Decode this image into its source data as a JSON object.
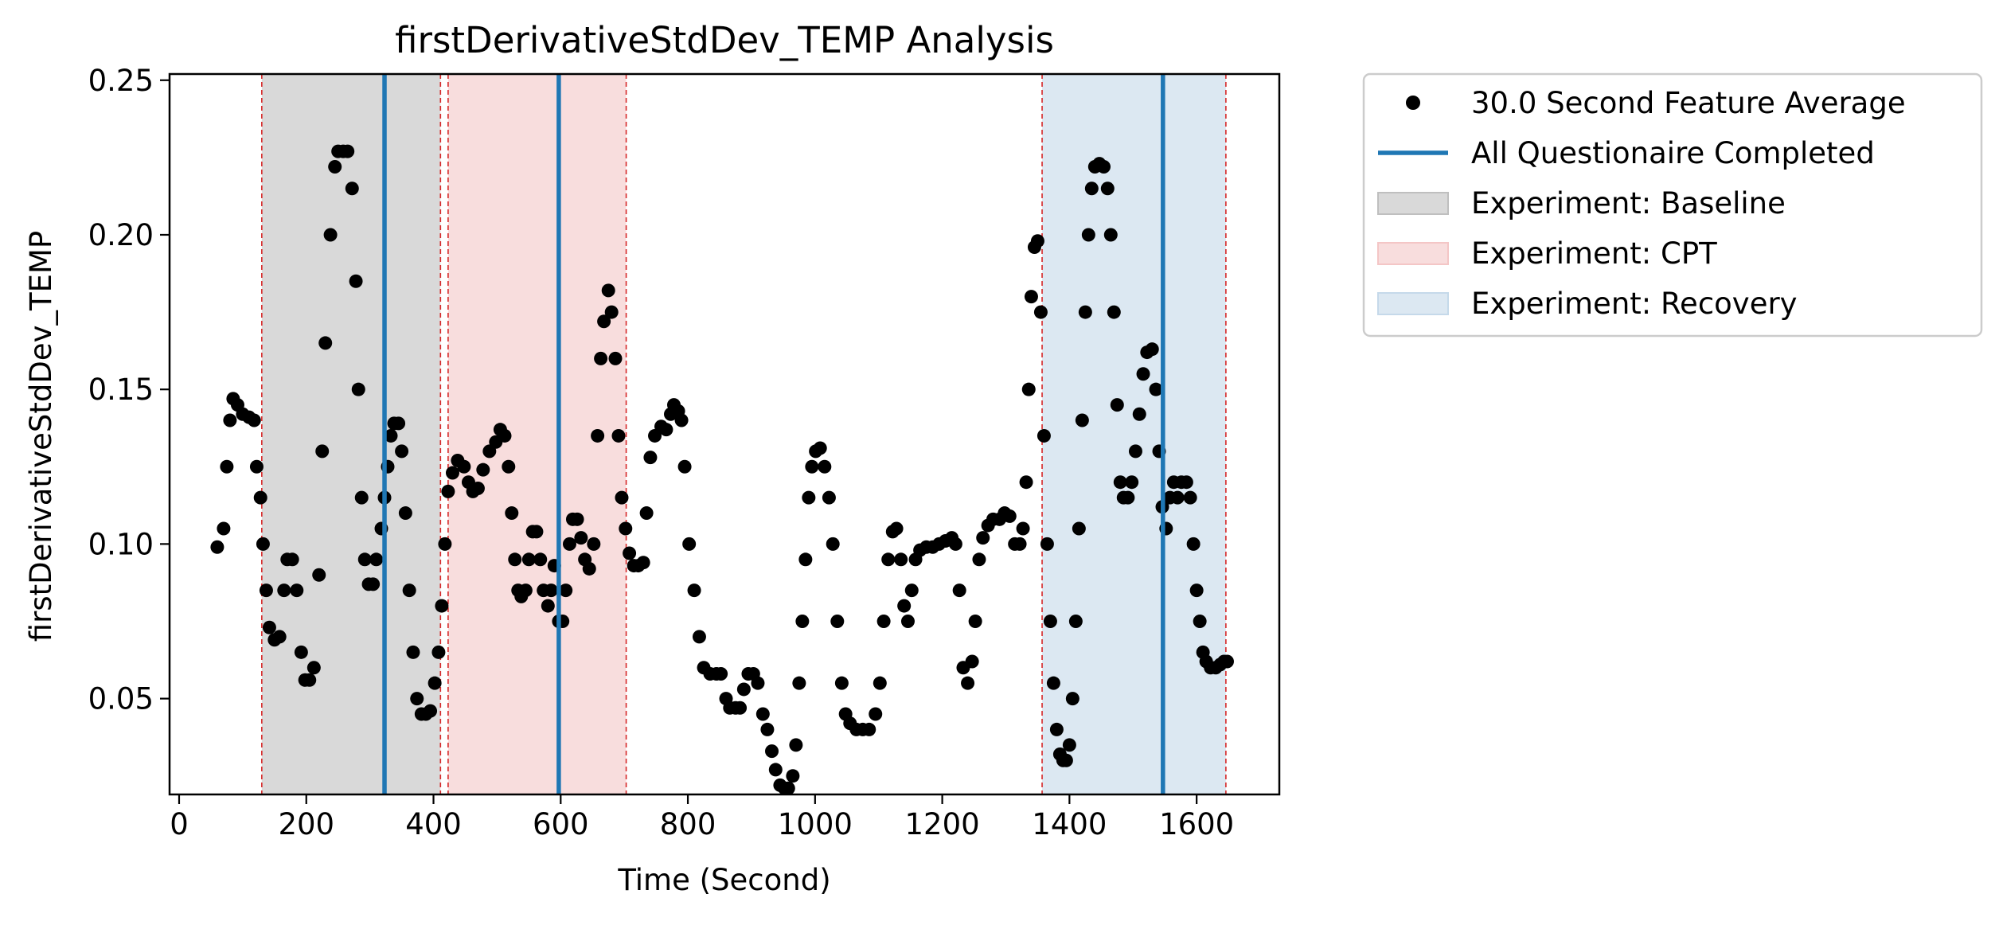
{
  "chart_data": {
    "type": "scatter",
    "title": "firstDerivativeStdDev_TEMP Analysis",
    "xlabel": "Time (Second)",
    "ylabel": "firstDerivativeStdDev_TEMP",
    "xlim": [
      -15,
      1730
    ],
    "ylim": [
      0.019,
      0.252
    ],
    "xticks": [
      0,
      200,
      400,
      600,
      800,
      1000,
      1200,
      1400,
      1600
    ],
    "yticks": [
      0.05,
      0.1,
      0.15,
      0.2,
      0.25
    ],
    "xtick_labels": [
      "0",
      "200",
      "400",
      "600",
      "800",
      "1000",
      "1200",
      "1400",
      "1600"
    ],
    "ytick_labels": [
      "0.05",
      "0.10",
      "0.15",
      "0.20",
      "0.25"
    ],
    "grid": false,
    "legend_position": "outside-upper-right",
    "series": [
      {
        "name": "30.0 Second Feature Average",
        "kind": "scatter",
        "color": "#000000",
        "points": [
          [
            60,
            0.099
          ],
          [
            70,
            0.105
          ],
          [
            75,
            0.125
          ],
          [
            80,
            0.14
          ],
          [
            85,
            0.147
          ],
          [
            92,
            0.145
          ],
          [
            100,
            0.142
          ],
          [
            110,
            0.141
          ],
          [
            118,
            0.14
          ],
          [
            122,
            0.125
          ],
          [
            128,
            0.115
          ],
          [
            132,
            0.1
          ],
          [
            137,
            0.085
          ],
          [
            142,
            0.073
          ],
          [
            150,
            0.069
          ],
          [
            158,
            0.07
          ],
          [
            165,
            0.085
          ],
          [
            170,
            0.095
          ],
          [
            178,
            0.095
          ],
          [
            185,
            0.085
          ],
          [
            192,
            0.065
          ],
          [
            198,
            0.056
          ],
          [
            205,
            0.056
          ],
          [
            212,
            0.06
          ],
          [
            220,
            0.09
          ],
          [
            225,
            0.13
          ],
          [
            230,
            0.165
          ],
          [
            238,
            0.2
          ],
          [
            245,
            0.222
          ],
          [
            250,
            0.227
          ],
          [
            258,
            0.227
          ],
          [
            265,
            0.227
          ],
          [
            272,
            0.215
          ],
          [
            278,
            0.185
          ],
          [
            282,
            0.15
          ],
          [
            287,
            0.115
          ],
          [
            292,
            0.095
          ],
          [
            298,
            0.087
          ],
          [
            305,
            0.087
          ],
          [
            310,
            0.095
          ],
          [
            318,
            0.105
          ],
          [
            323,
            0.115
          ],
          [
            328,
            0.125
          ],
          [
            333,
            0.135
          ],
          [
            338,
            0.139
          ],
          [
            345,
            0.139
          ],
          [
            350,
            0.13
          ],
          [
            356,
            0.11
          ],
          [
            362,
            0.085
          ],
          [
            368,
            0.065
          ],
          [
            374,
            0.05
          ],
          [
            381,
            0.045
          ],
          [
            388,
            0.045
          ],
          [
            395,
            0.046
          ],
          [
            402,
            0.055
          ],
          [
            408,
            0.065
          ],
          [
            413,
            0.08
          ],
          [
            418,
            0.1
          ],
          [
            423,
            0.117
          ],
          [
            430,
            0.123
          ],
          [
            438,
            0.127
          ],
          [
            448,
            0.125
          ],
          [
            455,
            0.12
          ],
          [
            462,
            0.117
          ],
          [
            470,
            0.118
          ],
          [
            478,
            0.124
          ],
          [
            488,
            0.13
          ],
          [
            498,
            0.133
          ],
          [
            505,
            0.137
          ],
          [
            512,
            0.135
          ],
          [
            518,
            0.125
          ],
          [
            523,
            0.11
          ],
          [
            528,
            0.095
          ],
          [
            533,
            0.085
          ],
          [
            538,
            0.083
          ],
          [
            545,
            0.085
          ],
          [
            550,
            0.095
          ],
          [
            556,
            0.104
          ],
          [
            562,
            0.104
          ],
          [
            568,
            0.095
          ],
          [
            573,
            0.085
          ],
          [
            580,
            0.08
          ],
          [
            585,
            0.085
          ],
          [
            590,
            0.093
          ],
          [
            597,
            0.075
          ],
          [
            603,
            0.075
          ],
          [
            608,
            0.085
          ],
          [
            614,
            0.1
          ],
          [
            619,
            0.108
          ],
          [
            626,
            0.108
          ],
          [
            632,
            0.102
          ],
          [
            638,
            0.095
          ],
          [
            645,
            0.092
          ],
          [
            652,
            0.1
          ],
          [
            658,
            0.135
          ],
          [
            663,
            0.16
          ],
          [
            668,
            0.172
          ],
          [
            675,
            0.182
          ],
          [
            680,
            0.175
          ],
          [
            686,
            0.16
          ],
          [
            691,
            0.135
          ],
          [
            696,
            0.115
          ],
          [
            702,
            0.105
          ],
          [
            708,
            0.097
          ],
          [
            715,
            0.093
          ],
          [
            722,
            0.093
          ],
          [
            730,
            0.094
          ],
          [
            735,
            0.11
          ],
          [
            741,
            0.128
          ],
          [
            748,
            0.135
          ],
          [
            758,
            0.138
          ],
          [
            766,
            0.137
          ],
          [
            773,
            0.142
          ],
          [
            778,
            0.145
          ],
          [
            785,
            0.143
          ],
          [
            790,
            0.14
          ],
          [
            795,
            0.125
          ],
          [
            802,
            0.1
          ],
          [
            810,
            0.085
          ],
          [
            818,
            0.07
          ],
          [
            825,
            0.06
          ],
          [
            835,
            0.058
          ],
          [
            845,
            0.058
          ],
          [
            852,
            0.058
          ],
          [
            860,
            0.05
          ],
          [
            866,
            0.047
          ],
          [
            875,
            0.047
          ],
          [
            882,
            0.047
          ],
          [
            888,
            0.053
          ],
          [
            895,
            0.058
          ],
          [
            903,
            0.058
          ],
          [
            910,
            0.055
          ],
          [
            918,
            0.045
          ],
          [
            925,
            0.04
          ],
          [
            932,
            0.033
          ],
          [
            938,
            0.027
          ],
          [
            945,
            0.022
          ],
          [
            952,
            0.021
          ],
          [
            958,
            0.021
          ],
          [
            965,
            0.025
          ],
          [
            970,
            0.035
          ],
          [
            975,
            0.055
          ],
          [
            980,
            0.075
          ],
          [
            985,
            0.095
          ],
          [
            990,
            0.115
          ],
          [
            995,
            0.125
          ],
          [
            1001,
            0.13
          ],
          [
            1008,
            0.131
          ],
          [
            1015,
            0.125
          ],
          [
            1022,
            0.115
          ],
          [
            1028,
            0.1
          ],
          [
            1035,
            0.075
          ],
          [
            1042,
            0.055
          ],
          [
            1048,
            0.045
          ],
          [
            1055,
            0.042
          ],
          [
            1065,
            0.04
          ],
          [
            1075,
            0.04
          ],
          [
            1085,
            0.04
          ],
          [
            1095,
            0.045
          ],
          [
            1102,
            0.055
          ],
          [
            1108,
            0.075
          ],
          [
            1115,
            0.095
          ],
          [
            1122,
            0.104
          ],
          [
            1128,
            0.105
          ],
          [
            1135,
            0.095
          ],
          [
            1140,
            0.08
          ],
          [
            1146,
            0.075
          ],
          [
            1152,
            0.085
          ],
          [
            1158,
            0.095
          ],
          [
            1165,
            0.098
          ],
          [
            1175,
            0.099
          ],
          [
            1185,
            0.099
          ],
          [
            1195,
            0.1
          ],
          [
            1205,
            0.101
          ],
          [
            1215,
            0.102
          ],
          [
            1221,
            0.1
          ],
          [
            1227,
            0.085
          ],
          [
            1233,
            0.06
          ],
          [
            1240,
            0.055
          ],
          [
            1247,
            0.062
          ],
          [
            1252,
            0.075
          ],
          [
            1258,
            0.095
          ],
          [
            1264,
            0.102
          ],
          [
            1272,
            0.106
          ],
          [
            1280,
            0.108
          ],
          [
            1290,
            0.108
          ],
          [
            1298,
            0.11
          ],
          [
            1306,
            0.109
          ],
          [
            1314,
            0.1
          ],
          [
            1322,
            0.1
          ],
          [
            1327,
            0.105
          ],
          [
            1332,
            0.12
          ],
          [
            1336,
            0.15
          ],
          [
            1340,
            0.18
          ],
          [
            1345,
            0.196
          ],
          [
            1350,
            0.198
          ],
          [
            1355,
            0.175
          ],
          [
            1360,
            0.135
          ],
          [
            1365,
            0.1
          ],
          [
            1370,
            0.075
          ],
          [
            1375,
            0.055
          ],
          [
            1380,
            0.04
          ],
          [
            1385,
            0.032
          ],
          [
            1390,
            0.03
          ],
          [
            1395,
            0.03
          ],
          [
            1400,
            0.035
          ],
          [
            1405,
            0.05
          ],
          [
            1410,
            0.075
          ],
          [
            1415,
            0.105
          ],
          [
            1420,
            0.14
          ],
          [
            1425,
            0.175
          ],
          [
            1430,
            0.2
          ],
          [
            1435,
            0.215
          ],
          [
            1440,
            0.222
          ],
          [
            1447,
            0.223
          ],
          [
            1454,
            0.222
          ],
          [
            1460,
            0.215
          ],
          [
            1465,
            0.2
          ],
          [
            1470,
            0.175
          ],
          [
            1475,
            0.145
          ],
          [
            1480,
            0.12
          ],
          [
            1485,
            0.115
          ],
          [
            1492,
            0.115
          ],
          [
            1498,
            0.12
          ],
          [
            1504,
            0.13
          ],
          [
            1510,
            0.142
          ],
          [
            1516,
            0.155
          ],
          [
            1522,
            0.162
          ],
          [
            1530,
            0.163
          ],
          [
            1536,
            0.15
          ],
          [
            1541,
            0.13
          ],
          [
            1546,
            0.112
          ],
          [
            1552,
            0.105
          ],
          [
            1558,
            0.115
          ],
          [
            1564,
            0.12
          ],
          [
            1570,
            0.115
          ],
          [
            1576,
            0.12
          ],
          [
            1584,
            0.12
          ],
          [
            1590,
            0.115
          ],
          [
            1595,
            0.1
          ],
          [
            1600,
            0.085
          ],
          [
            1605,
            0.075
          ],
          [
            1610,
            0.065
          ],
          [
            1615,
            0.062
          ],
          [
            1622,
            0.06
          ],
          [
            1630,
            0.06
          ],
          [
            1637,
            0.061
          ],
          [
            1643,
            0.062
          ],
          [
            1648,
            0.062
          ]
        ]
      },
      {
        "name": "All Questionaire Completed",
        "kind": "vline",
        "color": "#1f77b4",
        "x": [
          323,
          597,
          1547
        ]
      }
    ],
    "regions": [
      {
        "name": "Experiment: Baseline",
        "x0": 130,
        "x1": 411,
        "color": "#bfbfbf"
      },
      {
        "name": "Experiment: CPT",
        "x0": 423,
        "x1": 703,
        "color": "#f4c6c6"
      },
      {
        "name": "Experiment: Recovery",
        "x0": 1357,
        "x1": 1646,
        "color": "#c5d9ea"
      }
    ],
    "legend": [
      {
        "label": "30.0 Second Feature Average",
        "kind": "marker",
        "color": "#000000"
      },
      {
        "label": "All Questionaire Completed",
        "kind": "line",
        "color": "#1f77b4"
      },
      {
        "label": "Experiment: Baseline",
        "kind": "patch",
        "color": "#bfbfbf"
      },
      {
        "label": "Experiment: CPT",
        "kind": "patch",
        "color": "#f4c6c6"
      },
      {
        "label": "Experiment: Recovery",
        "kind": "patch",
        "color": "#c5d9ea"
      }
    ]
  }
}
